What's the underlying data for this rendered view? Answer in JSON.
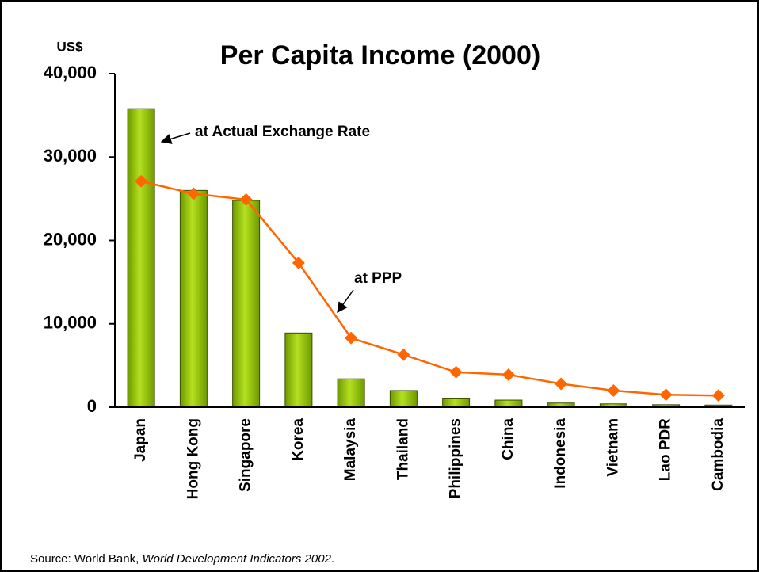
{
  "chart_data": {
    "type": "bar_line",
    "title": "Per Capita Income (2000)",
    "y_label": "US$",
    "categories": [
      "Japan",
      "Hong Kong",
      "Singapore",
      "Korea",
      "Malaysia",
      "Thailand",
      "Philippines",
      "China",
      "Indonesia",
      "Vietnam",
      "Lao PDR",
      "Cambodia"
    ],
    "series": [
      {
        "name": "at Actual Exchange Rate",
        "type": "bar",
        "color": "#8fc200",
        "values": [
          35800,
          26000,
          24800,
          8900,
          3400,
          2000,
          1000,
          850,
          500,
          400,
          300,
          260
        ]
      },
      {
        "name": "at PPP",
        "type": "line",
        "color": "#ff6600",
        "values": [
          27100,
          25600,
          24900,
          17300,
          8300,
          6300,
          4200,
          3900,
          2800,
          2000,
          1500,
          1400
        ]
      }
    ],
    "ylim": [
      0,
      40000
    ],
    "yticks": [
      0,
      {
        "value": 10000,
        "label": "10,000"
      },
      {
        "value": 20000,
        "label": "20,000"
      },
      {
        "value": 30000,
        "label": "30,000"
      },
      {
        "value": 40000,
        "label": "40,000"
      }
    ],
    "grid": false,
    "source": {
      "prefix": "Source: World Bank, ",
      "title": "World Development Indicators 2002",
      "suffix": "."
    }
  }
}
